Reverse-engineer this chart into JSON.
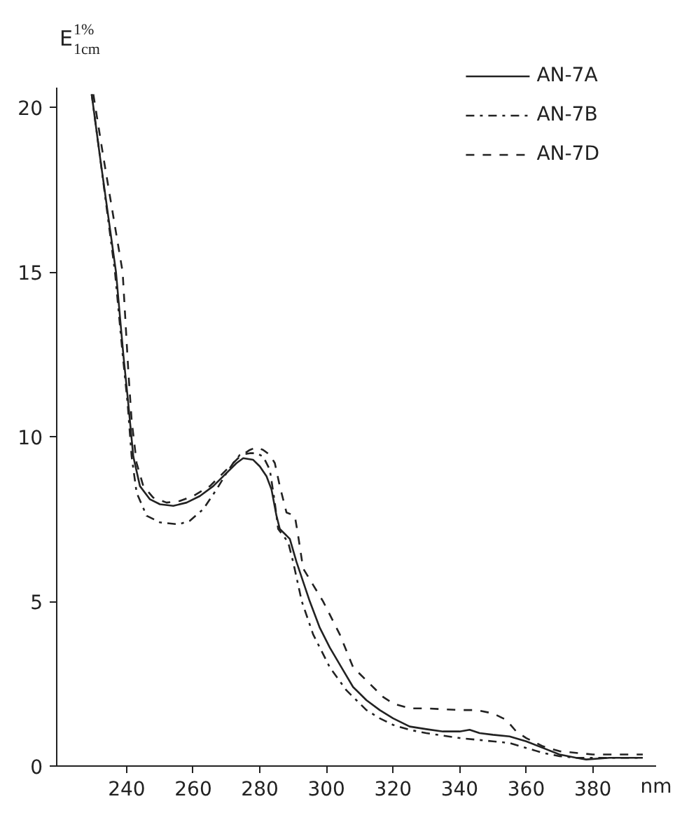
{
  "chart_data": {
    "type": "line",
    "ylabel": "E$^{1%}$$_{1cm}$",
    "xlabel": "nm",
    "xlim": [
      219,
      399
    ],
    "xticks": [
      240,
      260,
      280,
      300,
      320,
      340,
      360,
      380
    ],
    "ylim": [
      0,
      20.6
    ],
    "yticks": [
      0,
      5,
      10,
      15,
      20
    ],
    "grid": false,
    "legend": "top right",
    "marker": "none",
    "series": [
      {
        "name": "AN-7A",
        "color": "#222222",
        "line_style": "solid",
        "x": [
          229.5,
          232,
          236.8,
          239,
          240.5,
          242,
          244,
          247,
          250,
          254,
          258,
          262,
          266,
          270,
          273,
          275,
          278,
          280,
          282,
          283.5,
          285,
          286,
          287.5,
          289,
          291,
          293,
          295,
          298,
          301,
          304.5,
          308,
          312,
          316,
          320,
          325,
          330,
          335,
          340,
          343,
          346,
          350,
          355,
          360,
          365,
          370,
          375,
          378,
          385,
          395
        ],
        "values": [
          20.4,
          18.5,
          15.0,
          12.5,
          11.0,
          9.4,
          8.5,
          8.1,
          7.95,
          7.9,
          8.0,
          8.2,
          8.5,
          8.9,
          9.2,
          9.35,
          9.3,
          9.1,
          8.8,
          8.4,
          7.6,
          7.2,
          7.05,
          6.9,
          6.2,
          5.6,
          5.0,
          4.2,
          3.6,
          3.0,
          2.4,
          2.0,
          1.7,
          1.45,
          1.2,
          1.12,
          1.05,
          1.05,
          1.1,
          1.0,
          0.95,
          0.9,
          0.75,
          0.55,
          0.35,
          0.25,
          0.2,
          0.25,
          0.25
        ]
      },
      {
        "name": "AN-7B",
        "color": "#222222",
        "line_style": "dashdot",
        "x": [
          229.5,
          232,
          236.5,
          238.8,
          240.3,
          241.5,
          243,
          246,
          250,
          255.6,
          259,
          263,
          267,
          270,
          272,
          274,
          277,
          279,
          281,
          283,
          284.5,
          285.5,
          287,
          288.5,
          290,
          292.6,
          296,
          301,
          306,
          312,
          316,
          320,
          325,
          330,
          340,
          350,
          355,
          360,
          365,
          370,
          375,
          380,
          395
        ],
        "values": [
          20.4,
          18.5,
          15.0,
          12.5,
          11.0,
          9.4,
          8.3,
          7.6,
          7.4,
          7.34,
          7.45,
          7.8,
          8.4,
          8.9,
          9.2,
          9.45,
          9.5,
          9.5,
          9.4,
          9.0,
          8.0,
          7.2,
          7.0,
          6.8,
          6.2,
          5.0,
          4.0,
          3.0,
          2.3,
          1.7,
          1.45,
          1.25,
          1.1,
          1.0,
          0.85,
          0.75,
          0.7,
          0.55,
          0.4,
          0.3,
          0.25,
          0.25,
          0.25
        ]
      },
      {
        "name": "AN-7D",
        "color": "#222222",
        "line_style": "dashed",
        "x": [
          230,
          233,
          238.8,
          240.5,
          241.5,
          243,
          245,
          248,
          252,
          256,
          260,
          265,
          270,
          274,
          277,
          279,
          281,
          283,
          284.5,
          286,
          288,
          290.5,
          291.5,
          293,
          296,
          299,
          304,
          308,
          312,
          317,
          320,
          325,
          330,
          340,
          345,
          350,
          354,
          357,
          360,
          365,
          370,
          380,
          395
        ],
        "values": [
          20.4,
          18.5,
          15.0,
          12.0,
          10.5,
          9.2,
          8.5,
          8.15,
          8.0,
          8.05,
          8.2,
          8.5,
          9.0,
          9.4,
          9.6,
          9.68,
          9.6,
          9.45,
          9.2,
          8.5,
          7.7,
          7.6,
          7.0,
          6.0,
          5.5,
          5.0,
          4.0,
          3.0,
          2.6,
          2.1,
          1.9,
          1.75,
          1.75,
          1.7,
          1.7,
          1.6,
          1.4,
          1.05,
          0.85,
          0.6,
          0.45,
          0.35,
          0.35
        ]
      }
    ]
  }
}
